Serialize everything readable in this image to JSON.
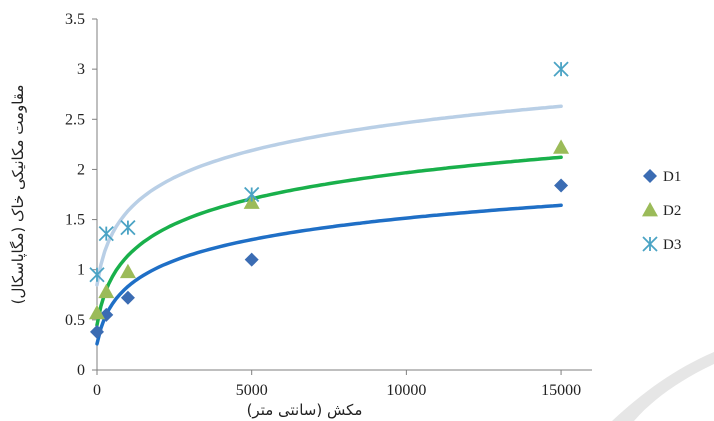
{
  "chart_data": {
    "type": "scatter",
    "title": "",
    "xlabel": "مکش (سانتی متر)",
    "ylabel": "مقاومت مکانیکی خاک (مگاپاسکال)",
    "xlim": [
      0,
      16000
    ],
    "ylim": [
      0,
      3.5
    ],
    "x_ticks": [
      0,
      5000,
      10000,
      15000
    ],
    "x_tick_labels": [
      "0",
      "5000",
      "10000",
      "15000"
    ],
    "y_ticks": [
      0,
      0.5,
      1,
      1.5,
      2,
      2.5,
      3,
      3.5
    ],
    "y_tick_labels": [
      "0",
      "0.5",
      "1",
      "1.5",
      "2",
      "2.5",
      "3",
      "3.5"
    ],
    "grid": false,
    "legend_position": "right",
    "trendline": "logarithmic",
    "series": [
      {
        "name": "D1",
        "marker": "diamond",
        "color": "#3b6cb3",
        "line_color": "#1f6fc6",
        "x": [
          0,
          300,
          1000,
          5000,
          15000
        ],
        "y": [
          0.38,
          0.55,
          0.72,
          1.1,
          1.84
        ]
      },
      {
        "name": "D2",
        "marker": "triangle",
        "color": "#9bbb59",
        "line_color": "#19b04b",
        "x": [
          0,
          300,
          1000,
          5000,
          15000
        ],
        "y": [
          0.57,
          0.78,
          0.98,
          1.67,
          2.22
        ]
      },
      {
        "name": "D3",
        "marker": "asterisk",
        "color": "#4aa3c4",
        "line_color": "#b9cfe6",
        "x": [
          0,
          300,
          1000,
          5000,
          15000
        ],
        "y": [
          0.95,
          1.36,
          1.42,
          1.75,
          3.0
        ]
      }
    ]
  }
}
